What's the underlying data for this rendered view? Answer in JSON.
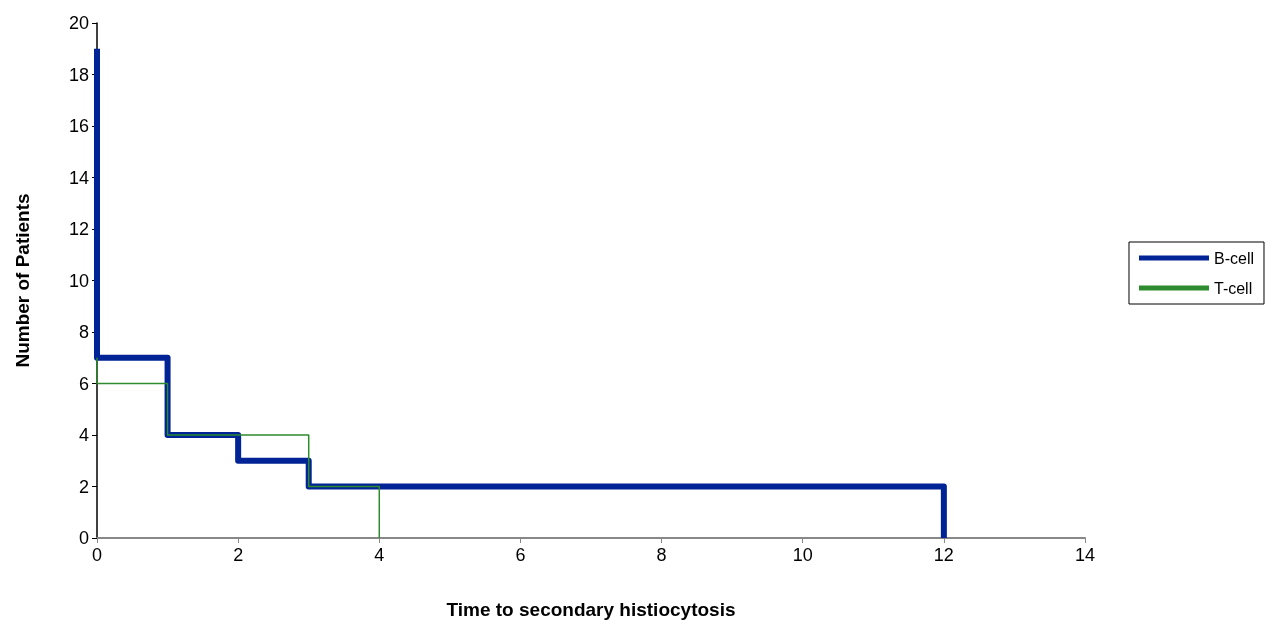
{
  "chart_data": {
    "type": "step",
    "xlabel": "Time to secondary histiocytosis",
    "ylabel": "Number of Patients",
    "xlim": [
      0,
      14
    ],
    "xticks": [
      0,
      2,
      4,
      6,
      8,
      10,
      12,
      14
    ],
    "ylim": [
      0,
      20
    ],
    "yticks": [
      0,
      2,
      4,
      6,
      8,
      10,
      12,
      14,
      16,
      18,
      20
    ],
    "grid": false,
    "legend": "right",
    "marker": "none",
    "line_style": "solid",
    "series": [
      {
        "name": "B-cell",
        "color": "#002395",
        "x": [
          0,
          0,
          1,
          2,
          3,
          12
        ],
        "values": [
          19,
          7,
          4,
          3,
          2,
          0
        ]
      },
      {
        "name": "T-cell",
        "color": "#2e8b2e",
        "x": [
          0,
          0,
          1,
          3,
          4
        ],
        "values": [
          7,
          6,
          4,
          2,
          0
        ]
      }
    ]
  }
}
